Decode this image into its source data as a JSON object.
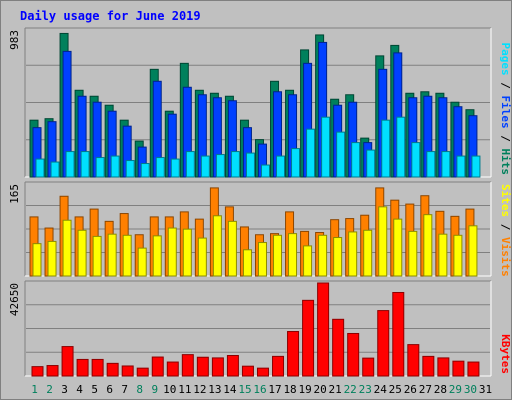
{
  "title": "Daily usage for June 2019",
  "colors": {
    "background": "#c0c0c0",
    "title": "#0000ff",
    "hits": "#00805c",
    "files": "#0040ff",
    "pages": "#00e0ff",
    "visits": "#ff8000",
    "sites": "#ffff00",
    "kbytes": "#ff0000",
    "weekday": "#000000",
    "weekend": "#00805c",
    "grid": "#808080"
  },
  "chart_data": [
    {
      "type": "bar",
      "panel": "hits-files-pages",
      "ymax_label": "983",
      "ylim": [
        0,
        983
      ],
      "categories": [
        "1",
        "2",
        "3",
        "4",
        "5",
        "6",
        "7",
        "8",
        "9",
        "10",
        "11",
        "12",
        "13",
        "14",
        "15",
        "16",
        "17",
        "18",
        "19",
        "20",
        "21",
        "22",
        "23",
        "24",
        "25",
        "26",
        "27",
        "28",
        "29",
        "30",
        "31"
      ],
      "legend": [
        {
          "label": "Hits",
          "color": "#00805c"
        },
        {
          "label": "Files",
          "color": "#0040ff"
        },
        {
          "label": "Pages",
          "color": "#00e0ff"
        }
      ],
      "legend_separator": "/",
      "series": [
        {
          "name": "Hits",
          "values": [
            380,
            390,
            960,
            580,
            540,
            480,
            380,
            240,
            720,
            440,
            760,
            580,
            560,
            540,
            380,
            250,
            640,
            580,
            850,
            950,
            520,
            550,
            260,
            810,
            880,
            560,
            570,
            560,
            500,
            450,
            0
          ]
        },
        {
          "name": "Files",
          "values": [
            330,
            370,
            840,
            540,
            500,
            440,
            340,
            200,
            640,
            420,
            600,
            550,
            530,
            510,
            330,
            220,
            570,
            550,
            760,
            900,
            480,
            500,
            230,
            720,
            830,
            530,
            540,
            530,
            470,
            410,
            0
          ]
        },
        {
          "name": "Pages",
          "values": [
            120,
            100,
            170,
            170,
            130,
            140,
            110,
            90,
            130,
            120,
            170,
            140,
            150,
            170,
            160,
            80,
            140,
            190,
            320,
            400,
            300,
            230,
            180,
            380,
            400,
            230,
            170,
            170,
            140,
            140,
            0
          ]
        }
      ]
    },
    {
      "type": "bar",
      "panel": "visits-sites",
      "ymax_label": "165",
      "ylim": [
        0,
        165
      ],
      "categories": [
        "1",
        "2",
        "3",
        "4",
        "5",
        "6",
        "7",
        "8",
        "9",
        "10",
        "11",
        "12",
        "13",
        "14",
        "15",
        "16",
        "17",
        "18",
        "19",
        "20",
        "21",
        "22",
        "23",
        "24",
        "25",
        "26",
        "27",
        "28",
        "29",
        "30",
        "31"
      ],
      "legend": [
        {
          "label": "Visits",
          "color": "#ff8000"
        },
        {
          "label": "Sites",
          "color": "#ffff00"
        }
      ],
      "legend_separator": "/",
      "series": [
        {
          "name": "Visits",
          "values": [
            106,
            86,
            143,
            106,
            120,
            98,
            112,
            74,
            106,
            106,
            115,
            102,
            158,
            124,
            88,
            74,
            76,
            115,
            80,
            78,
            101,
            103,
            109,
            158,
            136,
            129,
            144,
            116,
            107,
            120,
            0
          ]
        },
        {
          "name": "Sites",
          "values": [
            58,
            62,
            100,
            82,
            71,
            75,
            73,
            50,
            72,
            86,
            84,
            68,
            108,
            98,
            47,
            60,
            73,
            76,
            54,
            73,
            69,
            79,
            82,
            124,
            102,
            80,
            110,
            75,
            73,
            90,
            0
          ]
        }
      ]
    },
    {
      "type": "bar",
      "panel": "kbytes",
      "ymax_label": "42650",
      "ylim": [
        0,
        42650
      ],
      "categories": [
        "1",
        "2",
        "3",
        "4",
        "5",
        "6",
        "7",
        "8",
        "9",
        "10",
        "11",
        "12",
        "13",
        "14",
        "15",
        "16",
        "17",
        "18",
        "19",
        "20",
        "21",
        "22",
        "23",
        "24",
        "25",
        "26",
        "27",
        "28",
        "29",
        "30",
        "31"
      ],
      "legend": [
        {
          "label": "KBytes",
          "color": "#ff0000"
        }
      ],
      "series": [
        {
          "name": "KBytes",
          "values": [
            4300,
            4800,
            13500,
            7600,
            7600,
            5800,
            4600,
            3600,
            8700,
            6400,
            9800,
            8600,
            8300,
            9400,
            4500,
            3600,
            9000,
            20400,
            34700,
            42650,
            26000,
            19500,
            8200,
            30000,
            38300,
            14400,
            9000,
            8300,
            6800,
            6400,
            0
          ]
        }
      ]
    }
  ],
  "weekend_days": [
    "1",
    "2",
    "8",
    "9",
    "15",
    "16",
    "22",
    "23",
    "29",
    "30"
  ]
}
